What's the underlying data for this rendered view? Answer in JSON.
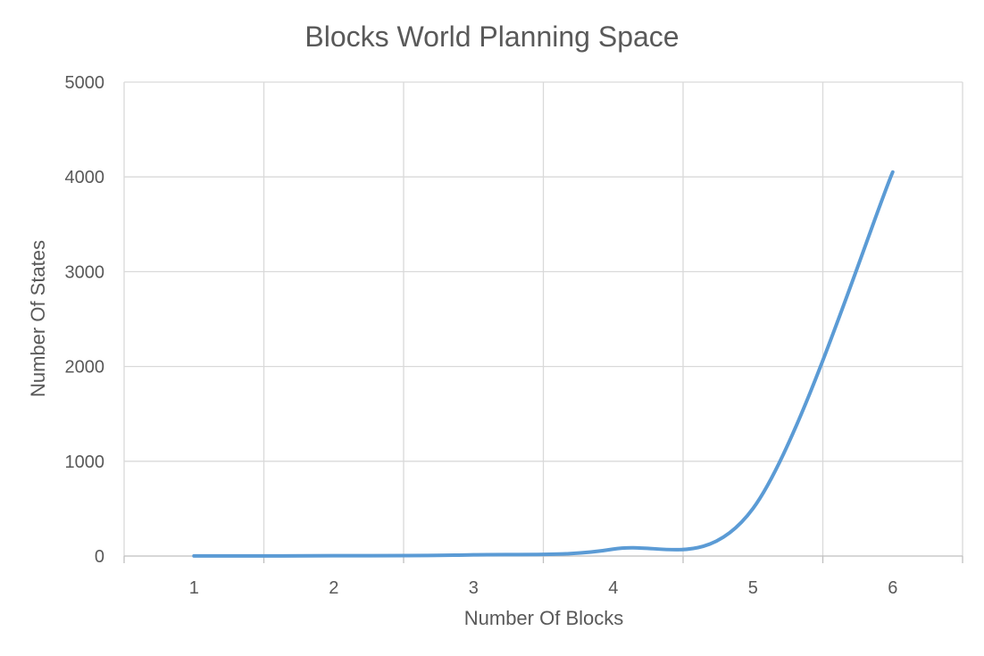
{
  "chart_data": {
    "type": "line",
    "title": "Blocks World Planning Space",
    "xlabel": "Number Of Blocks",
    "ylabel": "Number Of States",
    "categories": [
      "1",
      "2",
      "3",
      "4",
      "5",
      "6"
    ],
    "x": [
      1,
      2,
      3,
      4,
      5,
      6
    ],
    "ylim": [
      0,
      5000
    ],
    "yticks": [
      0,
      1000,
      2000,
      3000,
      4000,
      5000
    ],
    "grid": true,
    "smooth": true,
    "series": [
      {
        "values": [
          1,
          3,
          13,
          73,
          501,
          4051
        ],
        "color": "#5b9bd5"
      }
    ]
  }
}
